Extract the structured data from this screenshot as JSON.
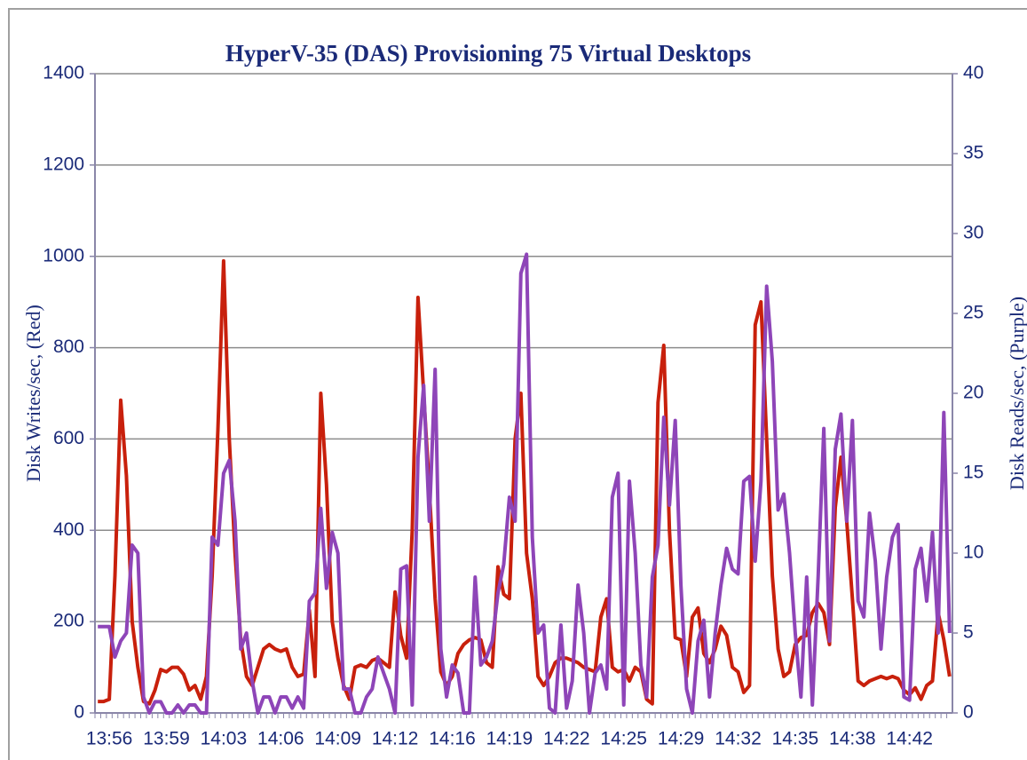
{
  "chart_data": {
    "type": "line",
    "title": "HyperV-35 (DAS) Provisioning 75 Virtual Desktops",
    "ylabel": "Disk Writes/sec, (Red)",
    "y2label": "Disk Reads/sec, (Purple)",
    "categories": [
      null,
      null,
      "13:56",
      null,
      null,
      null,
      null,
      null,
      null,
      null,
      null,
      null,
      "13:59",
      null,
      null,
      null,
      null,
      null,
      null,
      null,
      null,
      null,
      "14:03",
      null,
      null,
      null,
      null,
      null,
      null,
      null,
      null,
      null,
      "14:06",
      null,
      null,
      null,
      null,
      null,
      null,
      null,
      null,
      null,
      "14:09",
      null,
      null,
      null,
      null,
      null,
      null,
      null,
      null,
      null,
      "14:12",
      null,
      null,
      null,
      null,
      null,
      null,
      null,
      null,
      null,
      "14:16",
      null,
      null,
      null,
      null,
      null,
      null,
      null,
      null,
      null,
      "14:19",
      null,
      null,
      null,
      null,
      null,
      null,
      null,
      null,
      null,
      "14:22",
      null,
      null,
      null,
      null,
      null,
      null,
      null,
      null,
      null,
      "14:25",
      null,
      null,
      null,
      null,
      null,
      null,
      null,
      null,
      null,
      "14:29",
      null,
      null,
      null,
      null,
      null,
      null,
      null,
      null,
      null,
      "14:32",
      null,
      null,
      null,
      null,
      null,
      null,
      null,
      null,
      null,
      "14:35",
      null,
      null,
      null,
      null,
      null,
      null,
      null,
      null,
      null,
      "14:38",
      null,
      null,
      null,
      null,
      null,
      null,
      null,
      null,
      null,
      "14:42",
      null,
      null,
      null,
      null,
      null,
      null,
      null
    ],
    "series": [
      {
        "color": "#c8200c",
        "axis": "y",
        "values": [
          25,
          25,
          30,
          300,
          685,
          520,
          200,
          100,
          25,
          20,
          50,
          95,
          90,
          100,
          100,
          85,
          50,
          60,
          30,
          80,
          300,
          620,
          990,
          600,
          350,
          160,
          80,
          60,
          100,
          140,
          150,
          140,
          135,
          140,
          100,
          80,
          85,
          225,
          80,
          700,
          500,
          200,
          120,
          60,
          30,
          100,
          105,
          100,
          115,
          120,
          110,
          100,
          265,
          170,
          120,
          400,
          910,
          700,
          490,
          250,
          90,
          60,
          80,
          130,
          150,
          160,
          165,
          160,
          110,
          100,
          320,
          260,
          250,
          600,
          700,
          350,
          250,
          80,
          60,
          80,
          110,
          120,
          120,
          115,
          110,
          100,
          95,
          90,
          210,
          250,
          100,
          90,
          95,
          70,
          100,
          90,
          30,
          20,
          680,
          805,
          400,
          165,
          160,
          80,
          210,
          230,
          130,
          110,
          140,
          190,
          170,
          100,
          90,
          45,
          60,
          850,
          900,
          600,
          300,
          140,
          80,
          90,
          150,
          165,
          170,
          220,
          240,
          220,
          150,
          450,
          560,
          420,
          250,
          70,
          60,
          70,
          75,
          80,
          75,
          80,
          75,
          50,
          40,
          55,
          30,
          60,
          70,
          220,
          160,
          80
        ]
      },
      {
        "color": "#8e45b8",
        "axis": "y2",
        "values": [
          5.4,
          5.4,
          5.4,
          3.5,
          4.5,
          5,
          10.5,
          10,
          1,
          0,
          0.7,
          0.7,
          0,
          0,
          0.5,
          0,
          0.5,
          0.5,
          0,
          0,
          11,
          10.5,
          15,
          15.8,
          12,
          4,
          5,
          2,
          0,
          1,
          1,
          0,
          1,
          1,
          0.3,
          1,
          0.3,
          7,
          7.5,
          12.8,
          7.8,
          11.3,
          10,
          1.5,
          1.5,
          0,
          0,
          1,
          1.5,
          3.5,
          2.5,
          1.5,
          0,
          9,
          9.2,
          0.5,
          16,
          20.5,
          12,
          21.5,
          4,
          1,
          3,
          2.5,
          0,
          0,
          8.5,
          3,
          3.5,
          4.5,
          7.5,
          9.3,
          13.5,
          12,
          27.5,
          28.7,
          11,
          5,
          5.5,
          0.3,
          0,
          5.5,
          0.3,
          2,
          8,
          5,
          0,
          2.5,
          3,
          1.5,
          13.5,
          15,
          0.5,
          14.5,
          10,
          3,
          1,
          8.5,
          10.5,
          18.5,
          13,
          18.3,
          8,
          1.5,
          0,
          4.5,
          5.8,
          1,
          5,
          8,
          10.3,
          9,
          8.7,
          14.5,
          14.8,
          9.5,
          14.5,
          26.7,
          22,
          12.7,
          13.7,
          10,
          5,
          1,
          8.5,
          0.5,
          8.5,
          17.8,
          4.5,
          16.5,
          18.7,
          12,
          18.3,
          7,
          6,
          12.5,
          9.5,
          4,
          8.5,
          11,
          11.8,
          1,
          0.8,
          9,
          10.3,
          7,
          11.3,
          5,
          18.8,
          5
        ]
      }
    ],
    "ylim": [
      0,
      1400
    ],
    "yticks": [
      0,
      200,
      400,
      600,
      800,
      1000,
      1200,
      1400
    ],
    "y2lim": [
      0,
      40
    ],
    "y2ticks": [
      0,
      5,
      10,
      15,
      20,
      25,
      30,
      35,
      40
    ],
    "grid": true
  }
}
